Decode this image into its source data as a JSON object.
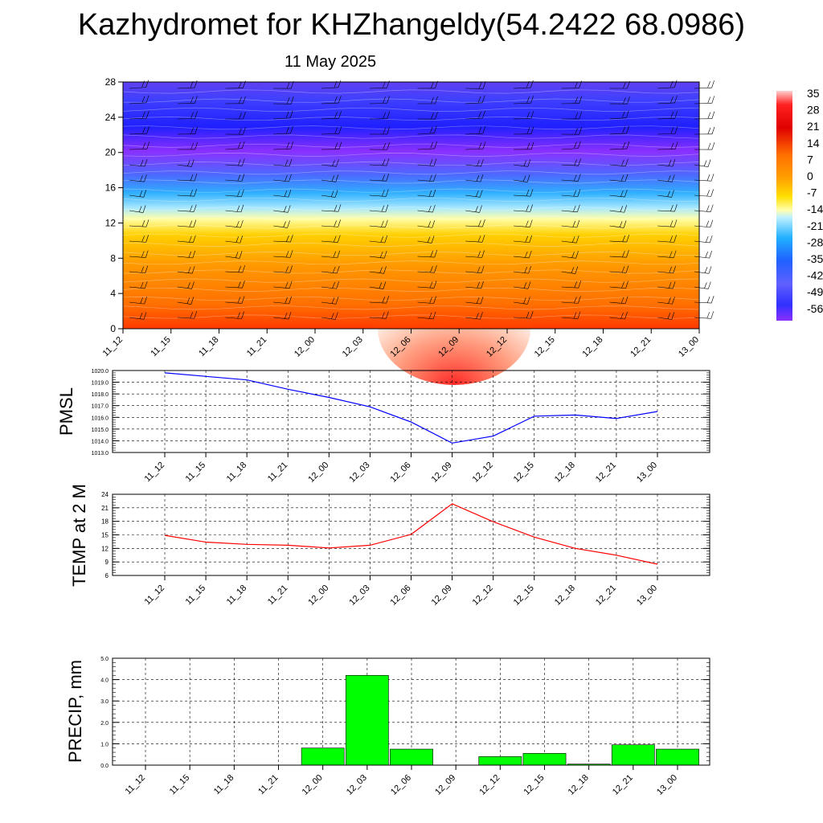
{
  "title": "Kazhydromet for KHZhangeldy(54.2422 68.0986)",
  "subtitle": "11 May 2025",
  "colors": {
    "pressure_line": "#0000ff",
    "temp_line": "#ff0000",
    "precip_bar": "#00ff00",
    "grid": "#000000"
  },
  "chart_data": [
    {
      "type": "heatmap",
      "name": "temperature-cross-section",
      "x_tick_labels": [
        "11_12",
        "11_15",
        "11_18",
        "11_21",
        "12_00",
        "12_03",
        "12_06",
        "12_09",
        "12_12",
        "12_15",
        "12_18",
        "12_21",
        "13_00"
      ],
      "y_ticks": [
        0,
        4,
        8,
        12,
        16,
        20,
        24,
        28
      ],
      "ylim": [
        0,
        28
      ],
      "colorbar_labels": [
        "35",
        "28",
        "21",
        "14",
        "7",
        "0",
        "-7",
        "-14",
        "-21",
        "-28",
        "-35",
        "-42",
        "-49",
        "-56"
      ],
      "wind_barbs": true
    },
    {
      "type": "line",
      "ylabel": "PMSL",
      "x": [
        "11_12",
        "11_15",
        "11_18",
        "11_21",
        "12_00",
        "12_03",
        "12_06",
        "12_09",
        "12_12",
        "12_15",
        "12_18",
        "12_21",
        "13_00"
      ],
      "values": [
        1019.8,
        1019.5,
        1019.2,
        1018.4,
        1017.7,
        1016.9,
        1015.6,
        1013.8,
        1014.4,
        1016.1,
        1016.2,
        1015.9,
        1016.5
      ],
      "ylim": [
        1013.0,
        1020.0
      ],
      "y_ticks": [
        "1013.0",
        "1014.0",
        "1015.0",
        "1016.0",
        "1017.0",
        "1018.0",
        "1019.0",
        "1020.0"
      ],
      "grid": true
    },
    {
      "type": "line",
      "ylabel": "TEMP at 2 M",
      "x": [
        "11_12",
        "11_15",
        "11_18",
        "11_21",
        "12_00",
        "12_03",
        "12_06",
        "12_09",
        "12_12",
        "12_15",
        "12_18",
        "12_21",
        "13_00"
      ],
      "values": [
        14.9,
        13.4,
        12.9,
        12.7,
        12.1,
        12.7,
        15.1,
        21.9,
        17.9,
        14.5,
        12.0,
        10.5,
        8.5
      ],
      "ylim": [
        6,
        24
      ],
      "y_ticks": [
        "6",
        "9",
        "12",
        "15",
        "18",
        "21",
        "24"
      ],
      "grid": true
    },
    {
      "type": "bar",
      "ylabel": "PRECIP, mm",
      "categories": [
        "11_12",
        "11_15",
        "11_18",
        "11_21",
        "12_00",
        "12_03",
        "12_06",
        "12_09",
        "12_12",
        "12_15",
        "12_18",
        "12_21",
        "13_00"
      ],
      "values": [
        0.0,
        0.0,
        0.0,
        0.0,
        0.8,
        4.2,
        0.75,
        0.0,
        0.4,
        0.55,
        0.05,
        0.95,
        0.75
      ],
      "ylim": [
        0.0,
        5.0
      ],
      "y_ticks": [
        "0.0",
        "1.0",
        "2.0",
        "3.0",
        "4.0",
        "5.0"
      ],
      "grid": true
    }
  ]
}
